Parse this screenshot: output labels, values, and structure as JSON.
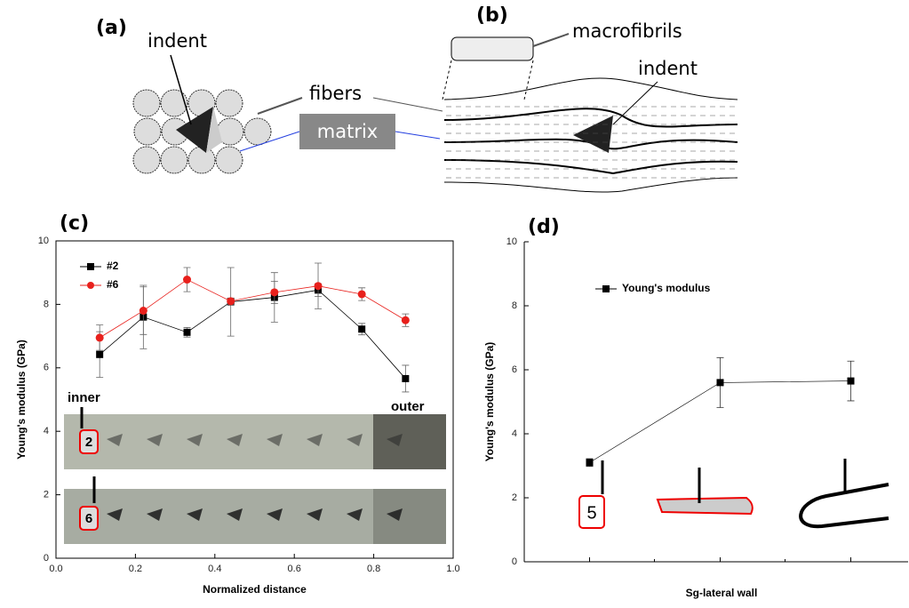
{
  "panels": [
    "(a)",
    "(b)",
    "(c)",
    "(d)"
  ],
  "diagram": {
    "indent_a": "indent",
    "fibers": "fibers",
    "matrix": "matrix",
    "macrofibrils": "macrofibrils",
    "indent_b": "indent"
  },
  "chart_data": [
    {
      "type": "line",
      "x_label": "Normalized distance",
      "y_label": "Young's modulus (GPa)",
      "x": [
        0.11,
        0.22,
        0.33,
        0.44,
        0.55,
        0.66,
        0.77,
        0.88
      ],
      "series": [
        {
          "name": "#2",
          "color": "#000000",
          "marker": "square",
          "values": [
            6.42,
            7.6,
            7.12,
            8.08,
            8.22,
            8.45,
            7.22,
            5.66
          ],
          "errors": [
            0.72,
            1.0,
            0.15,
            1.08,
            0.78,
            0.2,
            0.18,
            0.42
          ]
        },
        {
          "name": "#6",
          "color": "#e8201c",
          "marker": "circle",
          "values": [
            6.95,
            7.8,
            8.78,
            8.1,
            8.38,
            8.58,
            8.32,
            7.5
          ],
          "errors": [
            0.4,
            0.75,
            0.38,
            0.1,
            0.35,
            0.72,
            0.2,
            0.2
          ]
        }
      ],
      "xlim": [
        0,
        1
      ],
      "xticks": [
        {
          "value": 0,
          "label": "0.0"
        },
        0.2,
        0.4,
        0.6,
        0.8,
        {
          "value": 1,
          "label": "1.0"
        }
      ],
      "ylim": [
        0,
        10
      ],
      "yticks": [
        0,
        2,
        4,
        6,
        8,
        10
      ],
      "legend": "upper left",
      "annotations": {
        "inner": "inner",
        "outer": "outer",
        "sample_a": "2",
        "sample_b": "6"
      }
    },
    {
      "type": "line",
      "x_label": "Sg-lateral wall",
      "y_label": "Young's modulus (GPa)",
      "categories": [
        null,
        null,
        null
      ],
      "series": [
        {
          "name": "Young's modulus",
          "color": "#000000",
          "marker": "square",
          "values": [
            3.1,
            5.6,
            5.65
          ],
          "errors": [
            0.12,
            0.78,
            0.62
          ]
        }
      ],
      "ylim": [
        0,
        10
      ],
      "yticks": [
        0,
        2,
        4,
        6,
        8,
        10
      ],
      "legend": "upper left",
      "annotations": {
        "sample": "5"
      }
    }
  ]
}
